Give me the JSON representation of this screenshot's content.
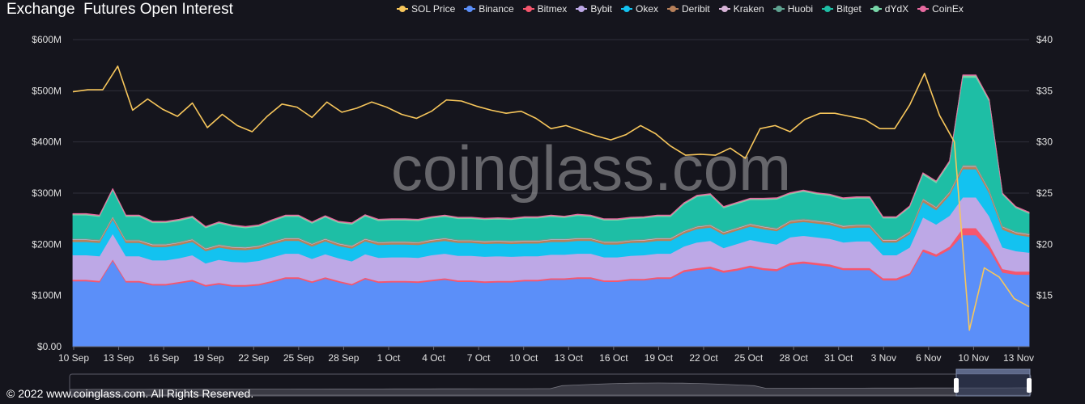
{
  "header": {
    "title": "Exchange  Futures Open Interest"
  },
  "watermark": "coinglass.com",
  "footer": {
    "copyright": "© 2022 www.coinglass.com. All Rights Reserved."
  },
  "colors": {
    "background": "#15151d",
    "gridline": "#30303a",
    "axis_text": "#e0e0e0",
    "zoom_bar": "#2a2a34",
    "zoom_selection": "#3b4566"
  },
  "chart_data": {
    "type": "area",
    "title": "Exchange  Futures Open Interest",
    "stacked": true,
    "x_tick_labels": [
      "10 Sep",
      "13 Sep",
      "16 Sep",
      "19 Sep",
      "22 Sep",
      "25 Sep",
      "28 Sep",
      "1 Oct",
      "4 Oct",
      "7 Oct",
      "10 Oct",
      "13 Oct",
      "16 Oct",
      "19 Oct",
      "22 Oct",
      "25 Oct",
      "28 Oct",
      "31 Oct",
      "3 Nov",
      "6 Nov",
      "10 Nov",
      "13 Nov"
    ],
    "y_left": {
      "ticks": [
        "$0.00",
        "$100M",
        "$200M",
        "$300M",
        "$400M",
        "$500M",
        "$600M"
      ],
      "min": 0,
      "max": 600,
      "unit": "$M"
    },
    "y_right": {
      "ticks": [
        "$15",
        "$20",
        "$25",
        "$30",
        "$35",
        "$40"
      ],
      "min": 10,
      "max": 40,
      "unit": "$"
    },
    "grid": true,
    "legend_position": "top-right",
    "series": [
      {
        "name": "Binance",
        "type": "area",
        "axis": "left",
        "color": "#5b8ff9",
        "values": [
          128,
          128,
          126,
          168,
          126,
          126,
          120,
          120,
          124,
          128,
          118,
          122,
          118,
          118,
          120,
          126,
          133,
          133,
          125,
          133,
          126,
          120,
          132,
          125,
          126,
          126,
          125,
          128,
          131,
          127,
          127,
          125,
          126,
          126,
          128,
          128,
          131,
          131,
          133,
          133,
          127,
          127,
          130,
          130,
          133,
          133,
          146,
          150,
          153,
          145,
          149,
          155,
          150,
          148,
          160,
          163,
          160,
          157,
          150,
          150,
          150,
          130,
          130,
          140,
          186,
          176,
          190,
          218,
          218,
          190,
          145,
          141,
          141
        ]
      },
      {
        "name": "Bitmex",
        "type": "area",
        "axis": "left",
        "color": "#f6566d",
        "values": [
          3,
          3,
          3,
          3,
          3,
          3,
          3,
          3,
          3,
          3,
          3,
          3,
          3,
          3,
          3,
          3,
          3,
          3,
          3,
          3,
          3,
          3,
          3,
          3,
          3,
          3,
          3,
          3,
          3,
          3,
          3,
          3,
          3,
          3,
          3,
          3,
          3,
          3,
          3,
          3,
          3,
          3,
          3,
          3,
          3,
          3,
          4,
          4,
          4,
          4,
          4,
          4,
          4,
          4,
          4,
          4,
          4,
          4,
          4,
          4,
          4,
          4,
          4,
          4,
          5,
          5,
          6,
          14,
          14,
          10,
          7,
          6,
          6
        ]
      },
      {
        "name": "Bybit",
        "type": "area",
        "axis": "left",
        "color": "#bda8e6",
        "values": [
          48,
          48,
          48,
          50,
          48,
          48,
          46,
          46,
          46,
          48,
          42,
          45,
          45,
          44,
          45,
          46,
          46,
          46,
          44,
          45,
          44,
          44,
          46,
          46,
          46,
          46,
          46,
          48,
          48,
          48,
          48,
          48,
          48,
          47,
          46,
          46,
          46,
          46,
          46,
          46,
          45,
          45,
          45,
          46,
          46,
          46,
          46,
          50,
          50,
          44,
          48,
          50,
          50,
          48,
          50,
          50,
          50,
          50,
          50,
          52,
          52,
          45,
          45,
          50,
          62,
          58,
          60,
          60,
          60,
          55,
          42,
          40,
          37
        ]
      },
      {
        "name": "Okex",
        "type": "area",
        "axis": "left",
        "color": "#13c2f0",
        "values": [
          26,
          26,
          26,
          28,
          26,
          26,
          26,
          26,
          26,
          26,
          24,
          24,
          24,
          24,
          24,
          25,
          25,
          25,
          24,
          25,
          24,
          25,
          25,
          25,
          25,
          25,
          25,
          25,
          25,
          25,
          25,
          25,
          25,
          25,
          25,
          25,
          25,
          25,
          25,
          25,
          25,
          25,
          25,
          25,
          25,
          25,
          25,
          26,
          26,
          26,
          26,
          26,
          26,
          26,
          27,
          27,
          27,
          27,
          27,
          27,
          27,
          25,
          25,
          26,
          30,
          28,
          40,
          55,
          55,
          45,
          35,
          32,
          31
        ]
      },
      {
        "name": "Deribit",
        "type": "area",
        "axis": "left",
        "color": "#b7805a",
        "values": [
          4,
          4,
          4,
          4,
          4,
          4,
          4,
          4,
          4,
          4,
          4,
          4,
          4,
          4,
          4,
          4,
          4,
          4,
          4,
          4,
          4,
          4,
          4,
          4,
          4,
          4,
          4,
          4,
          4,
          4,
          4,
          4,
          4,
          4,
          4,
          4,
          4,
          4,
          4,
          4,
          4,
          4,
          4,
          4,
          4,
          4,
          4,
          4,
          4,
          4,
          4,
          4,
          4,
          4,
          4,
          4,
          4,
          4,
          4,
          4,
          4,
          4,
          4,
          4,
          5,
          5,
          5,
          5,
          5,
          5,
          5,
          4,
          4
        ]
      },
      {
        "name": "Kraken",
        "type": "area",
        "axis": "left",
        "color": "#d8b4d8",
        "values": [
          1,
          1,
          1,
          1,
          1,
          1,
          1,
          1,
          1,
          1,
          1,
          1,
          1,
          1,
          1,
          1,
          1,
          1,
          1,
          1,
          1,
          1,
          1,
          1,
          1,
          1,
          1,
          1,
          1,
          1,
          1,
          1,
          1,
          1,
          1,
          1,
          1,
          1,
          1,
          1,
          1,
          1,
          1,
          1,
          1,
          1,
          1,
          1,
          1,
          1,
          1,
          1,
          1,
          1,
          1,
          1,
          1,
          1,
          1,
          1,
          1,
          1,
          1,
          1,
          1,
          1,
          1,
          1,
          1,
          1,
          1,
          1,
          1
        ]
      },
      {
        "name": "Huobi",
        "type": "area",
        "axis": "left",
        "color": "#5fa391",
        "values": [
          2,
          2,
          2,
          2,
          2,
          2,
          2,
          2,
          2,
          2,
          2,
          2,
          2,
          2,
          2,
          2,
          2,
          2,
          2,
          2,
          2,
          2,
          2,
          2,
          2,
          2,
          2,
          2,
          2,
          2,
          2,
          2,
          2,
          2,
          2,
          2,
          2,
          2,
          2,
          2,
          2,
          2,
          2,
          2,
          2,
          2,
          2,
          2,
          2,
          2,
          2,
          2,
          2,
          2,
          2,
          2,
          2,
          2,
          2,
          2,
          2,
          2,
          2,
          2,
          2,
          2,
          2,
          3,
          3,
          3,
          2,
          2,
          2
        ]
      },
      {
        "name": "Bitget",
        "type": "area",
        "axis": "left",
        "color": "#1ebea5",
        "values": [
          45,
          45,
          44,
          50,
          44,
          44,
          40,
          40,
          40,
          40,
          38,
          40,
          38,
          36,
          36,
          38,
          40,
          40,
          38,
          40,
          38,
          40,
          42,
          40,
          40,
          40,
          40,
          40,
          40,
          40,
          40,
          40,
          40,
          40,
          42,
          42,
          42,
          40,
          42,
          40,
          40,
          40,
          40,
          40,
          40,
          40,
          50,
          56,
          56,
          45,
          45,
          45,
          50,
          55,
          50,
          52,
          50,
          50,
          50,
          50,
          50,
          40,
          40,
          45,
          45,
          45,
          55,
          170,
          170,
          170,
          60,
          45,
          38
        ]
      },
      {
        "name": "dYdX",
        "type": "area",
        "axis": "left",
        "color": "#78d6a8",
        "values": [
          2,
          2,
          2,
          2,
          2,
          2,
          2,
          2,
          2,
          2,
          2,
          2,
          2,
          2,
          2,
          2,
          2,
          2,
          2,
          2,
          2,
          2,
          2,
          2,
          2,
          2,
          2,
          2,
          2,
          2,
          2,
          2,
          2,
          2,
          2,
          2,
          2,
          2,
          2,
          2,
          2,
          2,
          2,
          2,
          2,
          2,
          2,
          2,
          2,
          2,
          2,
          2,
          2,
          2,
          2,
          2,
          2,
          2,
          2,
          2,
          2,
          2,
          2,
          2,
          3,
          3,
          3,
          4,
          4,
          3,
          2,
          2,
          2
        ]
      },
      {
        "name": "CoinEx",
        "type": "area",
        "axis": "left",
        "color": "#e86aa0",
        "values": [
          1,
          1,
          1,
          1,
          1,
          1,
          1,
          1,
          1,
          1,
          1,
          1,
          1,
          1,
          1,
          1,
          1,
          1,
          1,
          1,
          1,
          1,
          1,
          1,
          1,
          1,
          1,
          1,
          1,
          1,
          1,
          1,
          1,
          1,
          1,
          1,
          1,
          1,
          1,
          1,
          1,
          1,
          1,
          1,
          1,
          1,
          1,
          1,
          1,
          1,
          1,
          1,
          1,
          1,
          1,
          1,
          1,
          1,
          1,
          1,
          1,
          1,
          1,
          1,
          1,
          1,
          1,
          1,
          1,
          1,
          1,
          1,
          1
        ]
      },
      {
        "name": "SOL Price",
        "type": "line",
        "axis": "right",
        "color": "#f7c65b",
        "values": [
          34.9,
          35.1,
          35.1,
          37.4,
          33.1,
          34.2,
          33.2,
          32.5,
          33.8,
          31.4,
          32.7,
          31.6,
          31.0,
          32.5,
          33.7,
          33.4,
          32.4,
          33.9,
          32.9,
          33.3,
          33.9,
          33.4,
          32.7,
          32.3,
          33.0,
          34.1,
          34.0,
          33.5,
          33.1,
          32.8,
          33.0,
          32.3,
          31.3,
          31.6,
          31.1,
          30.6,
          30.2,
          30.7,
          31.6,
          30.8,
          29.6,
          28.7,
          28.8,
          28.7,
          29.4,
          28.4,
          31.3,
          31.6,
          31.0,
          32.2,
          32.8,
          32.8,
          32.5,
          32.2,
          31.3,
          31.3,
          33.6,
          36.7,
          32.6,
          30.0,
          11.6,
          17.7,
          16.8,
          14.7,
          13.9
        ]
      }
    ],
    "sol_price_x_count": 65
  }
}
